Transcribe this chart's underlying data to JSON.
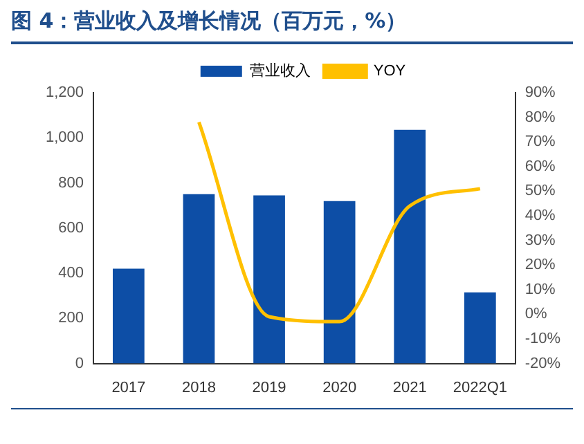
{
  "chart_data": {
    "type": "bar",
    "title": "图 4：营业收入及增长情况（百万元，%）",
    "categories": [
      "2017",
      "2018",
      "2019",
      "2020",
      "2021",
      "2022Q1"
    ],
    "series": [
      {
        "name": "营业收入",
        "type": "bar",
        "color": "#0d4ea6",
        "values": [
          420,
          750,
          745,
          720,
          1035,
          315
        ]
      },
      {
        "name": "YOY",
        "type": "line",
        "axis": "y2",
        "color": "#ffc000",
        "values": [
          null,
          78,
          -1,
          -3,
          44,
          51
        ]
      }
    ],
    "ylim": [
      0,
      1200
    ],
    "yticks": [
      0,
      200,
      400,
      600,
      {
        "value": 800,
        "label": "800"
      },
      {
        "value": 1000,
        "label": "1,000"
      },
      {
        "value": 1200,
        "label": "1,200"
      }
    ],
    "y2lim": [
      -20,
      90
    ],
    "y2ticks": [
      {
        "value": -20,
        "label": "-20%"
      },
      {
        "value": -10,
        "label": "-10%"
      },
      {
        "value": 0,
        "label": "0%"
      },
      {
        "value": 10,
        "label": "10%"
      },
      {
        "value": 20,
        "label": "20%"
      },
      {
        "value": 30,
        "label": "30%"
      },
      {
        "value": 40,
        "label": "40%"
      },
      {
        "value": 50,
        "label": "50%"
      },
      {
        "value": 60,
        "label": "60%"
      },
      {
        "value": 70,
        "label": "70%"
      },
      {
        "value": 80,
        "label": "80%"
      },
      {
        "value": 90,
        "label": "90%"
      }
    ],
    "grid": false,
    "legend": "top",
    "marker": "none"
  }
}
